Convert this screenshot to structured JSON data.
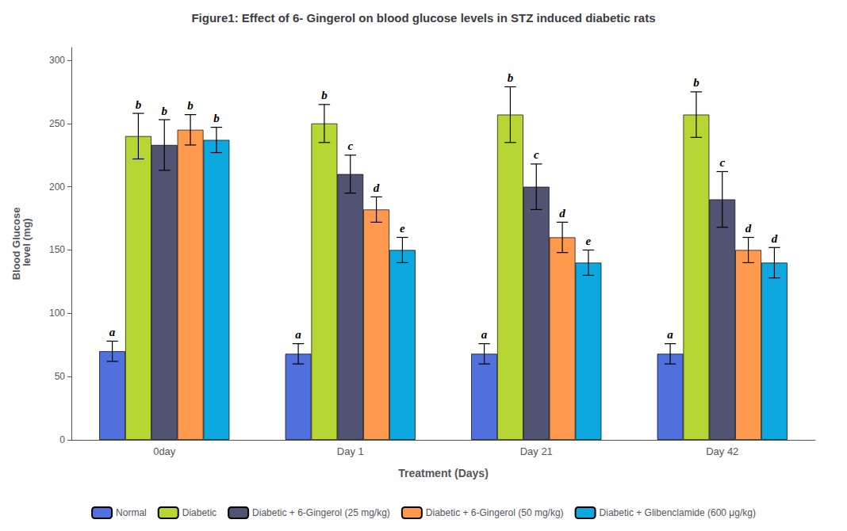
{
  "chart_data": {
    "type": "bar",
    "title": "Figure1: Effect of 6- Gingerol on blood glucose levels in STZ induced diabetic rats",
    "xlabel": "Treatment (Days)",
    "ylabel": "Blood Glucose\n level (mg)",
    "categories": [
      "0day",
      "Day 1",
      "Day 21",
      "Day 42"
    ],
    "series": [
      {
        "name": "Normal",
        "values": [
          70,
          68,
          68,
          68
        ],
        "errors": [
          8,
          8,
          8,
          8
        ],
        "sig_labels": [
          "a",
          "a",
          "a",
          "a"
        ]
      },
      {
        "name": "Diabetic",
        "values": [
          240,
          250,
          257,
          257
        ],
        "errors": [
          18,
          15,
          22,
          18
        ],
        "sig_labels": [
          "b",
          "b",
          "b",
          "b"
        ]
      },
      {
        "name": "Diabetic + 6-Gingerol (25 mg/kg)",
        "values": [
          233,
          210,
          200,
          190
        ],
        "errors": [
          20,
          15,
          18,
          22
        ],
        "sig_labels": [
          "b",
          "c",
          "c",
          "c"
        ]
      },
      {
        "name": "Diabetic + 6-Gingerol (50 mg/kg)",
        "values": [
          245,
          182,
          160,
          150
        ],
        "errors": [
          12,
          10,
          12,
          10
        ],
        "sig_labels": [
          "b",
          "d",
          "d",
          "d"
        ]
      },
      {
        "name": "Diabetic + Glibenclamide (600 μg/kg)",
        "values": [
          237,
          150,
          140,
          140
        ],
        "errors": [
          10,
          10,
          10,
          12
        ],
        "sig_labels": [
          "b",
          "e",
          "e",
          "d"
        ]
      }
    ],
    "ylim": [
      0,
      310
    ],
    "yticks": [
      0,
      50,
      100,
      150,
      200,
      250,
      300
    ],
    "grid": false,
    "legend": "bottom"
  }
}
